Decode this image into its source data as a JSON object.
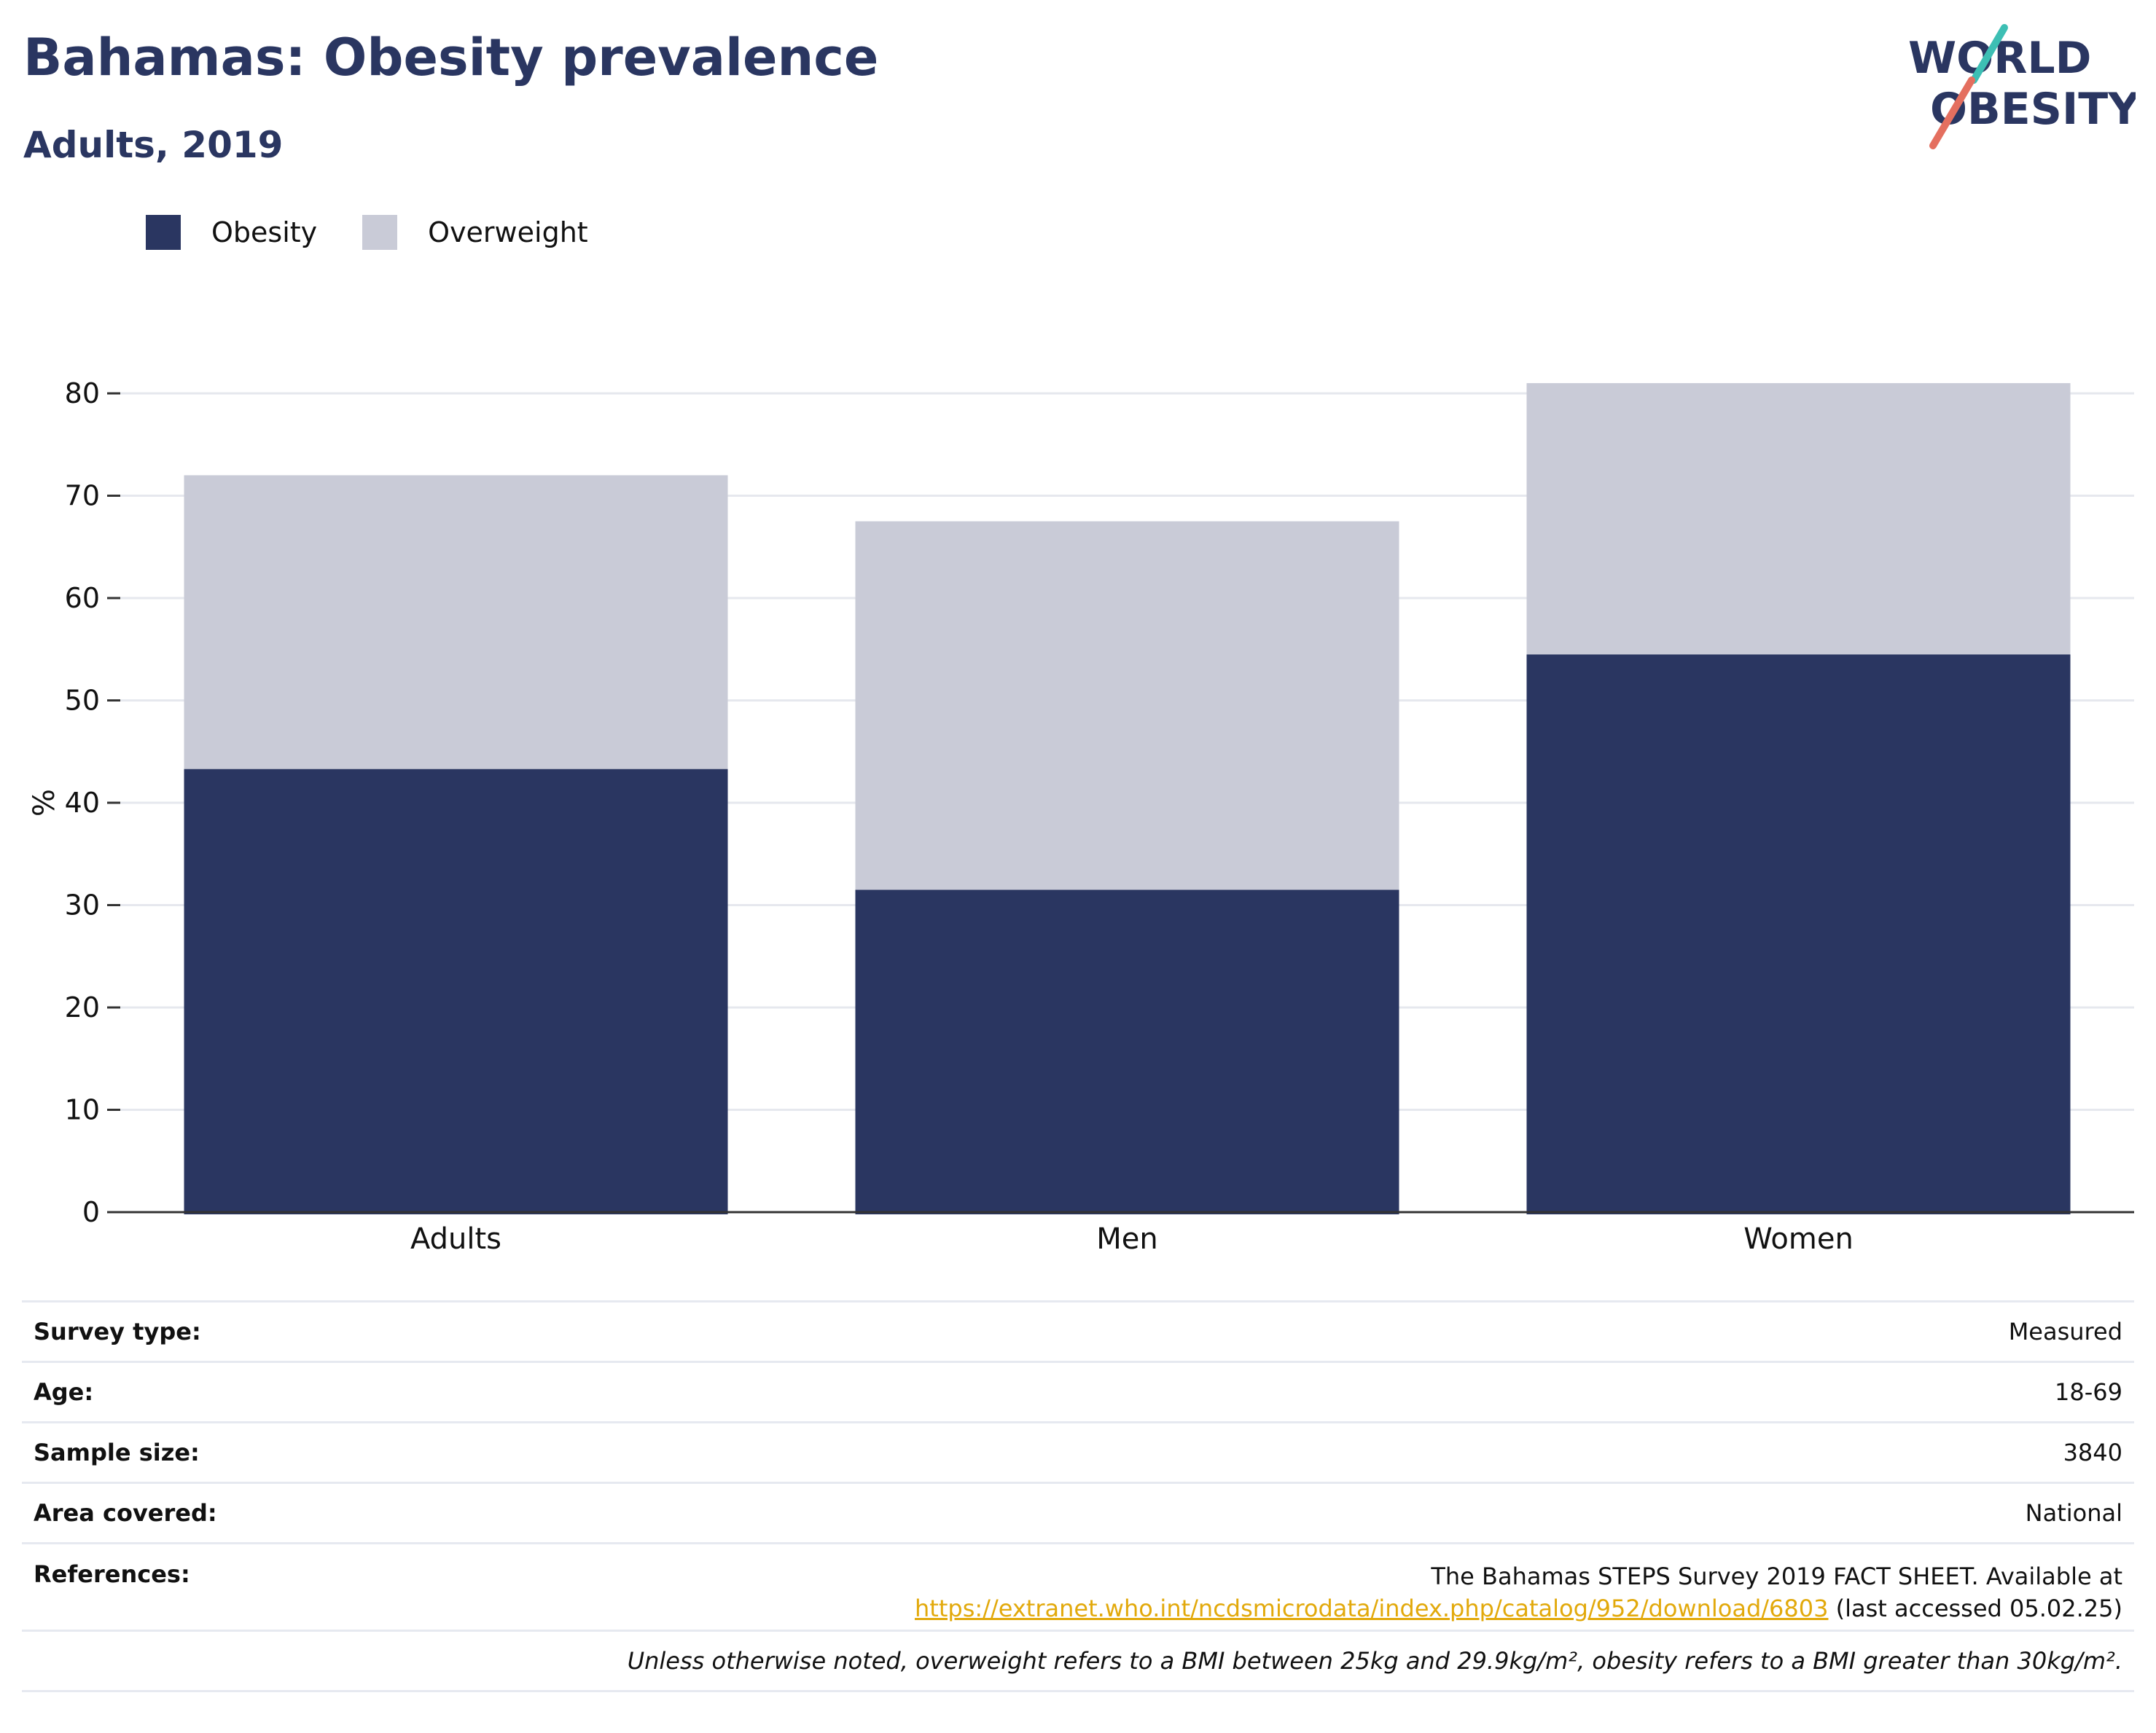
{
  "header": {
    "title": "Bahamas: Obesity prevalence",
    "subtitle": "Adults, 2019"
  },
  "logo": {
    "line1": "WORLD",
    "line2": "OBESITY"
  },
  "colors": {
    "obesity": "#2a3661",
    "overweight": "#c9cbd7",
    "axis": "#333333",
    "grid": "#e6e8ee",
    "link": "#e2a90b",
    "logo_teal": "#3dbfb4",
    "logo_coral": "#e46f5f"
  },
  "chart_data": {
    "type": "bar",
    "stacked": true,
    "categories": [
      "Adults",
      "Men",
      "Women"
    ],
    "series": [
      {
        "name": "Obesity",
        "values": [
          43.3,
          31.5,
          54.5
        ]
      },
      {
        "name": "Overweight",
        "values": [
          28.7,
          36.0,
          26.5
        ]
      }
    ],
    "ylabel": "%",
    "ylim": [
      0,
      80
    ],
    "yticks": [
      0,
      10,
      20,
      30,
      40,
      50,
      60,
      70,
      80
    ],
    "grid": true,
    "legend_position": "top-left"
  },
  "info": {
    "survey_type": {
      "label": "Survey type:",
      "value": "Measured"
    },
    "age": {
      "label": "Age:",
      "value": "18-69"
    },
    "sample_size": {
      "label": "Sample size:",
      "value": "3840"
    },
    "area": {
      "label": "Area covered:",
      "value": "National"
    },
    "references": {
      "label": "References:",
      "text": "The Bahamas STEPS Survey 2019 FACT SHEET. Available at",
      "link": "https://extranet.who.int/ncdsmicrodata/index.php/catalog/952/download/6803",
      "suffix": " (last accessed 05.02.25)"
    },
    "note": "Unless otherwise noted, overweight refers to a BMI between 25kg and 29.9kg/m², obesity refers to a BMI greater than 30kg/m²."
  }
}
